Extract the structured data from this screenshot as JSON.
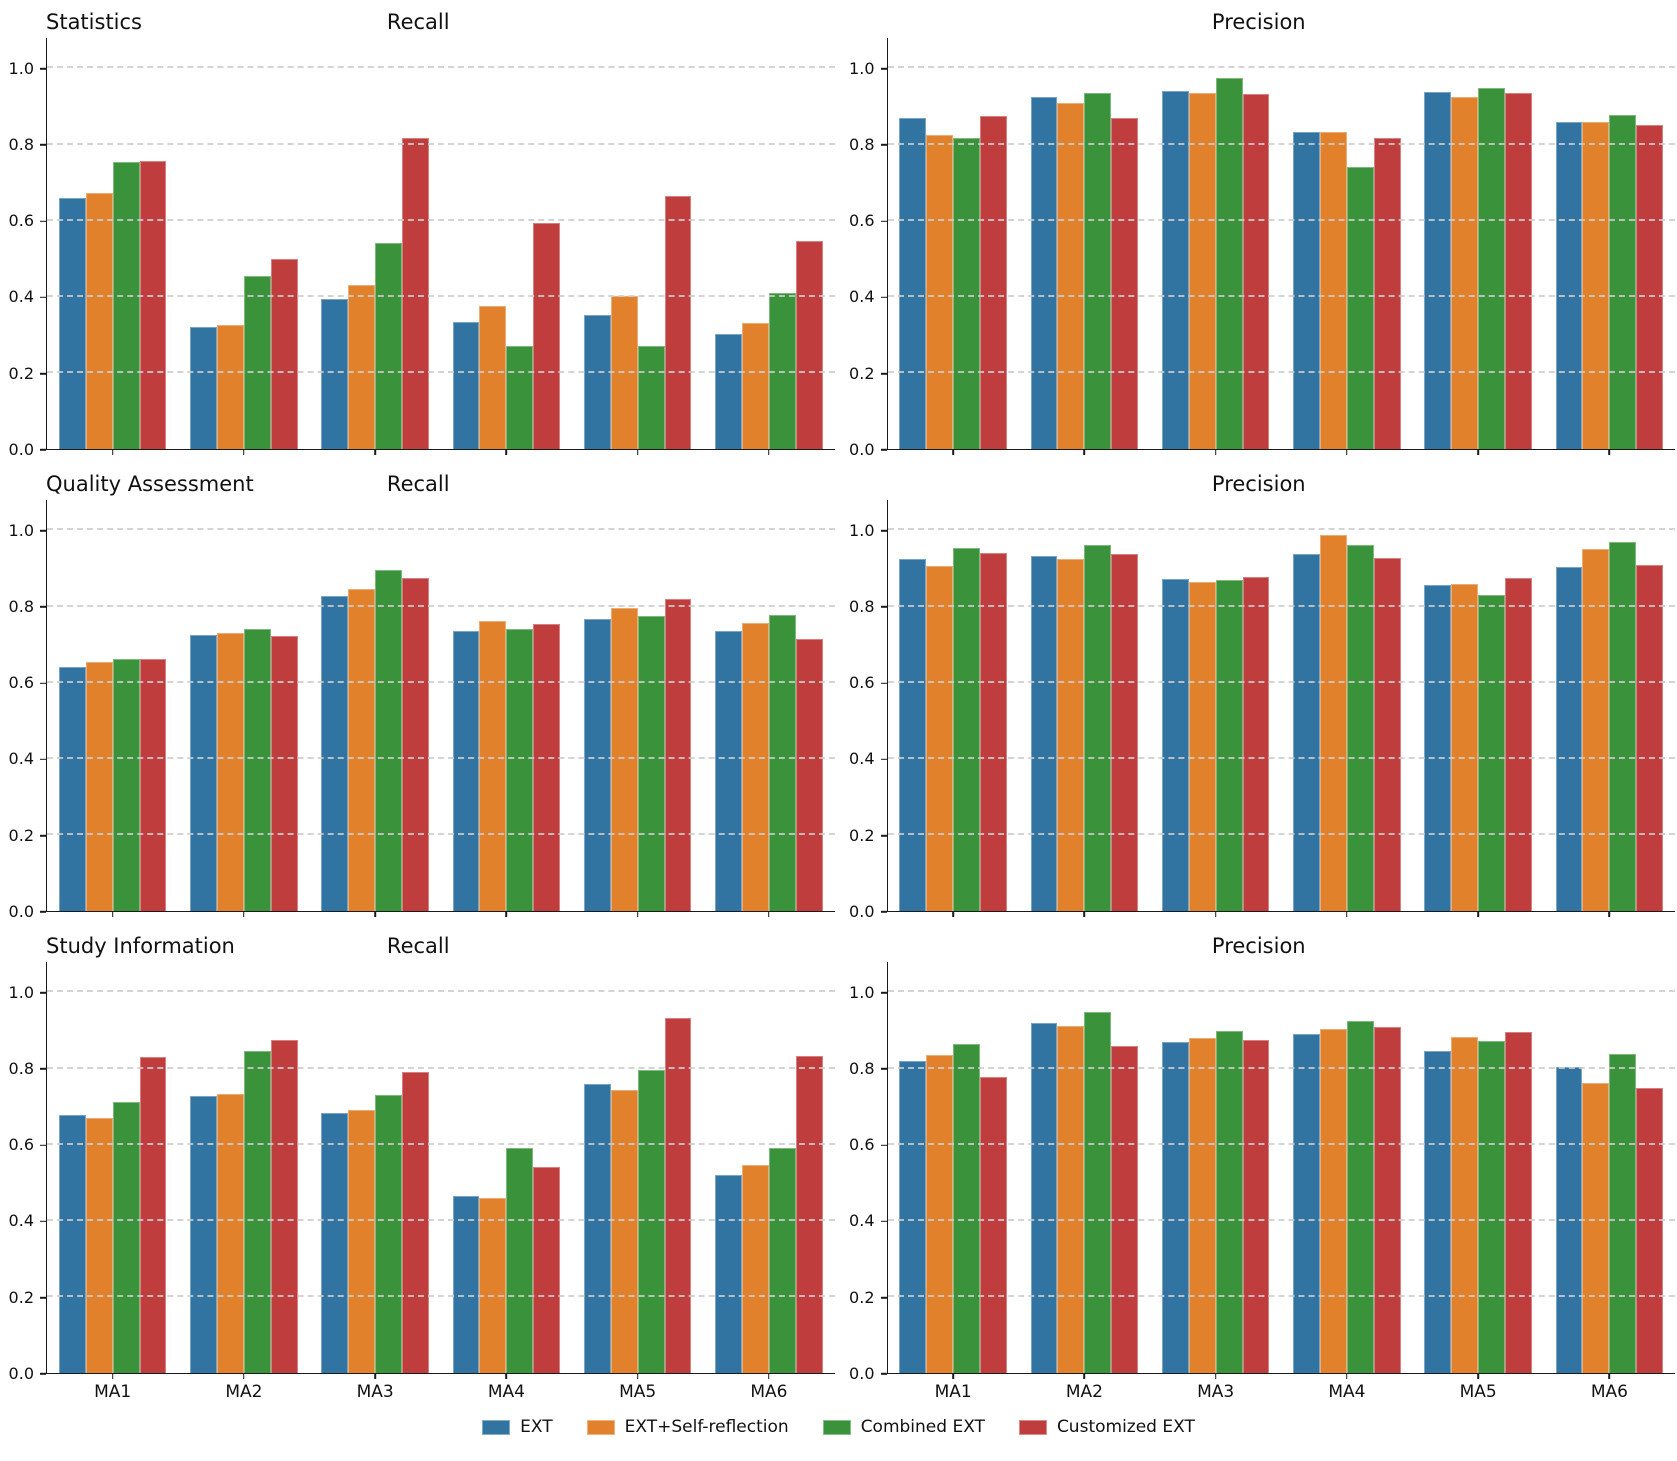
{
  "palette": {
    "blue": "#3274A1",
    "orange": "#E1812C",
    "green": "#3A923A",
    "red": "#C03D3E"
  },
  "y_tick_labels": [
    "0.0",
    "0.2",
    "0.4",
    "0.6",
    "0.8",
    "1.0"
  ],
  "legend": {
    "items": [
      {
        "label": "EXT",
        "color": "#3274A1"
      },
      {
        "label": "EXT+Self-reflection",
        "color": "#E1812C"
      },
      {
        "label": "Combined EXT",
        "color": "#3A923A"
      },
      {
        "label": "Customized EXT",
        "color": "#C03D3E"
      }
    ],
    "position": "bottom-center"
  },
  "chart_data": [
    {
      "type": "bar",
      "row_label": "Statistics",
      "metric": "Recall",
      "categories": [
        "MA1",
        "MA2",
        "MA3",
        "MA4",
        "MA5",
        "MA6"
      ],
      "series": [
        {
          "name": "EXT",
          "color": "#3274A1",
          "values": [
            0.66,
            0.32,
            0.393,
            0.334,
            0.352,
            0.303
          ]
        },
        {
          "name": "EXT+Self-reflection",
          "color": "#E1812C",
          "values": [
            0.672,
            0.325,
            0.432,
            0.376,
            0.402,
            0.331
          ]
        },
        {
          "name": "Combined EXT",
          "color": "#3A923A",
          "values": [
            0.753,
            0.454,
            0.542,
            0.271,
            0.272,
            0.41
          ]
        },
        {
          "name": "Customized EXT",
          "color": "#C03D3E",
          "values": [
            0.756,
            0.498,
            0.816,
            0.595,
            0.664,
            0.547
          ]
        }
      ],
      "ylim": [
        0,
        1.08
      ],
      "yticks": [
        0,
        0.2,
        0.4,
        0.6,
        0.8,
        1.0
      ],
      "grid": "dashed-horizontal",
      "show_xlabels": false
    },
    {
      "type": "bar",
      "row_label": "",
      "metric": "Precision",
      "categories": [
        "MA1",
        "MA2",
        "MA3",
        "MA4",
        "MA5",
        "MA6"
      ],
      "series": [
        {
          "name": "EXT",
          "color": "#3274A1",
          "values": [
            0.87,
            0.926,
            0.941,
            0.834,
            0.939,
            0.86
          ]
        },
        {
          "name": "EXT+Self-reflection",
          "color": "#E1812C",
          "values": [
            0.824,
            0.91,
            0.936,
            0.832,
            0.926,
            0.858
          ]
        },
        {
          "name": "Combined EXT",
          "color": "#3A923A",
          "values": [
            0.818,
            0.936,
            0.975,
            0.74,
            0.949,
            0.879
          ]
        },
        {
          "name": "Customized EXT",
          "color": "#C03D3E",
          "values": [
            0.875,
            0.871,
            0.933,
            0.816,
            0.936,
            0.852
          ]
        }
      ],
      "ylim": [
        0,
        1.08
      ],
      "yticks": [
        0,
        0.2,
        0.4,
        0.6,
        0.8,
        1.0
      ],
      "grid": "dashed-horizontal",
      "show_xlabels": false
    },
    {
      "type": "bar",
      "row_label": "Quality Assessment",
      "metric": "Recall",
      "categories": [
        "MA1",
        "MA2",
        "MA3",
        "MA4",
        "MA5",
        "MA6"
      ],
      "series": [
        {
          "name": "EXT",
          "color": "#3274A1",
          "values": [
            0.642,
            0.726,
            0.829,
            0.735,
            0.768,
            0.736
          ]
        },
        {
          "name": "EXT+Self-reflection",
          "color": "#E1812C",
          "values": [
            0.655,
            0.731,
            0.847,
            0.763,
            0.797,
            0.756
          ]
        },
        {
          "name": "Combined EXT",
          "color": "#3A923A",
          "values": [
            0.662,
            0.741,
            0.897,
            0.74,
            0.776,
            0.777
          ]
        },
        {
          "name": "Customized EXT",
          "color": "#C03D3E",
          "values": [
            0.661,
            0.723,
            0.876,
            0.753,
            0.819,
            0.714
          ]
        }
      ],
      "ylim": [
        0,
        1.08
      ],
      "yticks": [
        0,
        0.2,
        0.4,
        0.6,
        0.8,
        1.0
      ],
      "grid": "dashed-horizontal",
      "show_xlabels": false
    },
    {
      "type": "bar",
      "row_label": "",
      "metric": "Precision",
      "categories": [
        "MA1",
        "MA2",
        "MA3",
        "MA4",
        "MA5",
        "MA6"
      ],
      "series": [
        {
          "name": "EXT",
          "color": "#3274A1",
          "values": [
            0.925,
            0.933,
            0.872,
            0.939,
            0.856,
            0.904
          ]
        },
        {
          "name": "EXT+Self-reflection",
          "color": "#E1812C",
          "values": [
            0.907,
            0.925,
            0.864,
            0.989,
            0.859,
            0.952
          ]
        },
        {
          "name": "Combined EXT",
          "color": "#3A923A",
          "values": [
            0.955,
            0.963,
            0.869,
            0.963,
            0.83,
            0.97
          ]
        },
        {
          "name": "Customized EXT",
          "color": "#C03D3E",
          "values": [
            0.941,
            0.939,
            0.877,
            0.928,
            0.874,
            0.909
          ]
        }
      ],
      "ylim": [
        0,
        1.08
      ],
      "yticks": [
        0,
        0.2,
        0.4,
        0.6,
        0.8,
        1.0
      ],
      "grid": "dashed-horizontal",
      "show_xlabels": false
    },
    {
      "type": "bar",
      "row_label": "Study Information",
      "metric": "Recall",
      "categories": [
        "MA1",
        "MA2",
        "MA3",
        "MA4",
        "MA5",
        "MA6"
      ],
      "series": [
        {
          "name": "EXT",
          "color": "#3274A1",
          "values": [
            0.678,
            0.727,
            0.684,
            0.465,
            0.759,
            0.52
          ]
        },
        {
          "name": "EXT+Self-reflection",
          "color": "#E1812C",
          "values": [
            0.67,
            0.732,
            0.692,
            0.46,
            0.745,
            0.546
          ]
        },
        {
          "name": "Combined EXT",
          "color": "#3A923A",
          "values": [
            0.713,
            0.845,
            0.73,
            0.59,
            0.797,
            0.59
          ]
        },
        {
          "name": "Customized EXT",
          "color": "#C03D3E",
          "values": [
            0.83,
            0.876,
            0.792,
            0.542,
            0.932,
            0.832
          ]
        }
      ],
      "ylim": [
        0,
        1.08
      ],
      "yticks": [
        0,
        0.2,
        0.4,
        0.6,
        0.8,
        1.0
      ],
      "grid": "dashed-horizontal",
      "show_xlabels": true
    },
    {
      "type": "bar",
      "row_label": "",
      "metric": "Precision",
      "categories": [
        "MA1",
        "MA2",
        "MA3",
        "MA4",
        "MA5",
        "MA6"
      ],
      "series": [
        {
          "name": "EXT",
          "color": "#3274A1",
          "values": [
            0.82,
            0.921,
            0.87,
            0.892,
            0.845,
            0.803
          ]
        },
        {
          "name": "EXT+Self-reflection",
          "color": "#E1812C",
          "values": [
            0.835,
            0.913,
            0.881,
            0.903,
            0.884,
            0.762
          ]
        },
        {
          "name": "Combined EXT",
          "color": "#3A923A",
          "values": [
            0.865,
            0.948,
            0.9,
            0.926,
            0.873,
            0.837
          ]
        },
        {
          "name": "Customized EXT",
          "color": "#C03D3E",
          "values": [
            0.778,
            0.858,
            0.875,
            0.908,
            0.896,
            0.748
          ]
        }
      ],
      "ylim": [
        0,
        1.08
      ],
      "yticks": [
        0,
        0.2,
        0.4,
        0.6,
        0.8,
        1.0
      ],
      "grid": "dashed-horizontal",
      "show_xlabels": true
    }
  ]
}
